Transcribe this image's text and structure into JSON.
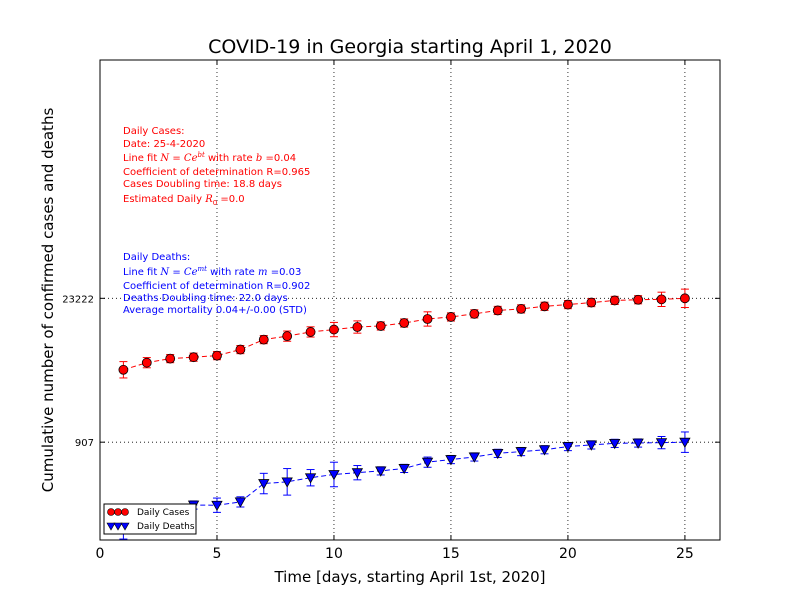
{
  "chart_data": {
    "type": "scatter",
    "title": "COVID-19 in Georgia starting April 1, 2020",
    "xlabel": "Time [days, starting April 1st, 2020]",
    "ylabel": "Cumulative number of confirmed cases and deaths",
    "xlim": [
      0,
      26.5
    ],
    "ylim": [
      100,
      5000000
    ],
    "y_scale": "log",
    "grid": true,
    "x_ticks": [
      0,
      5,
      10,
      15,
      20,
      25
    ],
    "y_ticks": [
      {
        "value": 23222,
        "label": "23222"
      },
      {
        "value": 907,
        "label": "907"
      }
    ],
    "legend_position": "lower-left",
    "series": [
      {
        "name": "Daily Cases",
        "color": "#ff0000",
        "marker": "circle",
        "x": [
          1,
          2,
          3,
          4,
          5,
          6,
          7,
          8,
          9,
          10,
          11,
          12,
          13,
          14,
          15,
          16,
          17,
          18,
          19,
          20,
          21,
          22,
          23,
          24,
          25
        ],
        "y": [
          4638,
          5444,
          5967,
          6160,
          6383,
          7314,
          9156,
          9901,
          10885,
          11483,
          12159,
          12452,
          13315,
          14578,
          15260,
          16368,
          17669,
          18301,
          19399,
          20166,
          21102,
          22147,
          22491,
          22695,
          23222
        ],
        "err": [
          0.08,
          0.05,
          0.04,
          0.04,
          0.04,
          0.04,
          0.04,
          0.05,
          0.05,
          0.07,
          0.06,
          0.04,
          0.04,
          0.07,
          0.04,
          0.04,
          0.04,
          0.04,
          0.04,
          0.04,
          0.04,
          0.04,
          0.04,
          0.07,
          0.09
        ]
      },
      {
        "name": "Daily Deaths",
        "color": "#0000ff",
        "marker": "triangle-down",
        "x": [
          1,
          2,
          3,
          4,
          5,
          6,
          7,
          8,
          9,
          10,
          11,
          12,
          13,
          14,
          15,
          16,
          17,
          18,
          19,
          20,
          21,
          22,
          23,
          24,
          25
        ],
        "y": [
          141,
          178,
          201,
          220,
          219,
          236,
          357,
          371,
          407,
          438,
          456,
          475,
          502,
          578,
          613,
          650,
          705,
          734,
          765,
          822,
          853,
          883,
          890,
          898,
          907
        ],
        "err": [
          0.14,
          0.07,
          0.04,
          0.04,
          0.07,
          0.05,
          0.1,
          0.13,
          0.08,
          0.12,
          0.07,
          0.04,
          0.04,
          0.05,
          0.04,
          0.04,
          0.04,
          0.04,
          0.04,
          0.04,
          0.04,
          0.04,
          0.04,
          0.06,
          0.1
        ]
      }
    ],
    "annotations": {
      "cases": {
        "color": "#ff0000",
        "lines": [
          "Daily Cases:",
          "Date: 25-4-2020",
          "Line fit N = Ce^{bt} with rate b = 0.04",
          "Coefficient of determination R=0.965",
          "Cases Doubling time: 18.8 days",
          "Estimated Daily R_0 = 0.0"
        ]
      },
      "deaths": {
        "color": "#0000ff",
        "lines": [
          "Daily Deaths:",
          "Line fit N = Ce^{mt} with rate m = 0.03",
          "Coefficient of determination R=0.902",
          "Deaths Doubling time: 22.0 days",
          "Average mortality 0.04+/-0.00 (STD)"
        ]
      }
    }
  }
}
